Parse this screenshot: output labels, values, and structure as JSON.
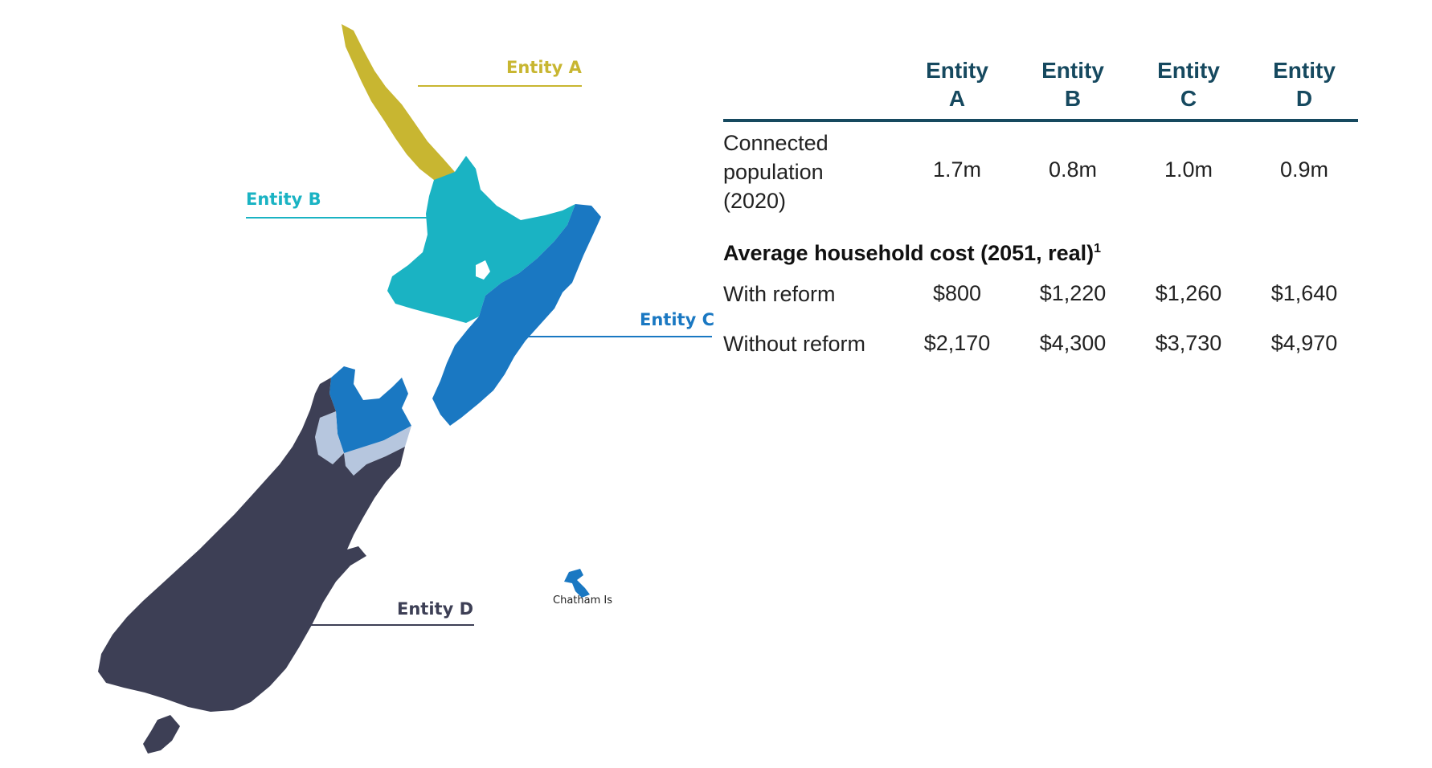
{
  "map": {
    "labels": {
      "entity_a": "Entity A",
      "entity_b": "Entity B",
      "entity_c": "Entity C",
      "entity_d": "Entity D",
      "chatham": "Chatham Is"
    },
    "colors": {
      "entity_a": "#c8b631",
      "entity_b": "#1ab3c3",
      "entity_c": "#1a78c2",
      "entity_d": "#3d3f55",
      "unassigned": "#b6c6de"
    }
  },
  "table": {
    "columns": [
      {
        "line1": "Entity",
        "line2": "A"
      },
      {
        "line1": "Entity",
        "line2": "B"
      },
      {
        "line1": "Entity",
        "line2": "C"
      },
      {
        "line1": "Entity",
        "line2": "D"
      }
    ],
    "connected_population": {
      "label_lines": [
        "Connected",
        "population",
        "(2020)"
      ],
      "values": [
        "1.7m",
        "0.8m",
        "1.0m",
        "0.9m"
      ]
    },
    "section_title": "Average household cost  (2051, real)",
    "section_footnote": "1",
    "rows": [
      {
        "label": "With reform",
        "values": [
          "$800",
          "$1,220",
          "$1,260",
          "$1,640"
        ]
      },
      {
        "label": "Without reform",
        "values": [
          "$2,170",
          "$4,300",
          "$3,730",
          "$4,970"
        ]
      }
    ]
  }
}
